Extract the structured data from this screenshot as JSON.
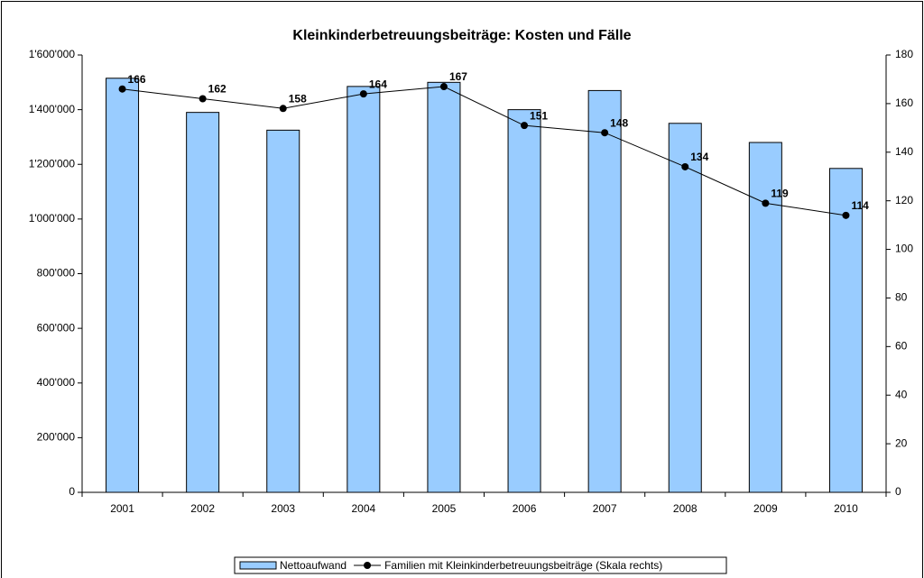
{
  "chart_data": {
    "type": "bar_line",
    "title": "Kleinkinderbetreuungsbeiträge: Kosten und Fälle",
    "categories": [
      "2001",
      "2002",
      "2003",
      "2004",
      "2005",
      "2006",
      "2007",
      "2008",
      "2009",
      "2010"
    ],
    "series": [
      {
        "name": "Nettoaufwand",
        "type": "bar",
        "color": "#99ccff",
        "values": [
          1515000,
          1390000,
          1325000,
          1485000,
          1500000,
          1400000,
          1470000,
          1350000,
          1280000,
          1185000
        ]
      },
      {
        "name": "Familien mit Kleinkinderbetreuungsbeiträge (Skala rechts)",
        "type": "line",
        "color": "#000000",
        "axis": "y2",
        "values": [
          166,
          162,
          158,
          164,
          167,
          151,
          148,
          134,
          119,
          114
        ]
      }
    ],
    "ylim": [
      0,
      1600000
    ],
    "yticks": [
      0,
      {
        "value": 200000,
        "label": "200'000"
      },
      {
        "value": 400000,
        "label": "400'000"
      },
      {
        "value": 600000,
        "label": "600'000"
      },
      {
        "value": 800000,
        "label": "800'000"
      },
      {
        "value": 1000000,
        "label": "1'000'000"
      },
      {
        "value": 1200000,
        "label": "1'200'000"
      },
      {
        "value": 1400000,
        "label": "1'400'000"
      },
      {
        "value": 1600000,
        "label": "1'600'000"
      }
    ],
    "y2lim": [
      0,
      180
    ],
    "y2ticks": [
      0,
      20,
      40,
      60,
      80,
      100,
      120,
      140,
      160,
      180
    ],
    "legend": "bottom",
    "grid": false
  }
}
